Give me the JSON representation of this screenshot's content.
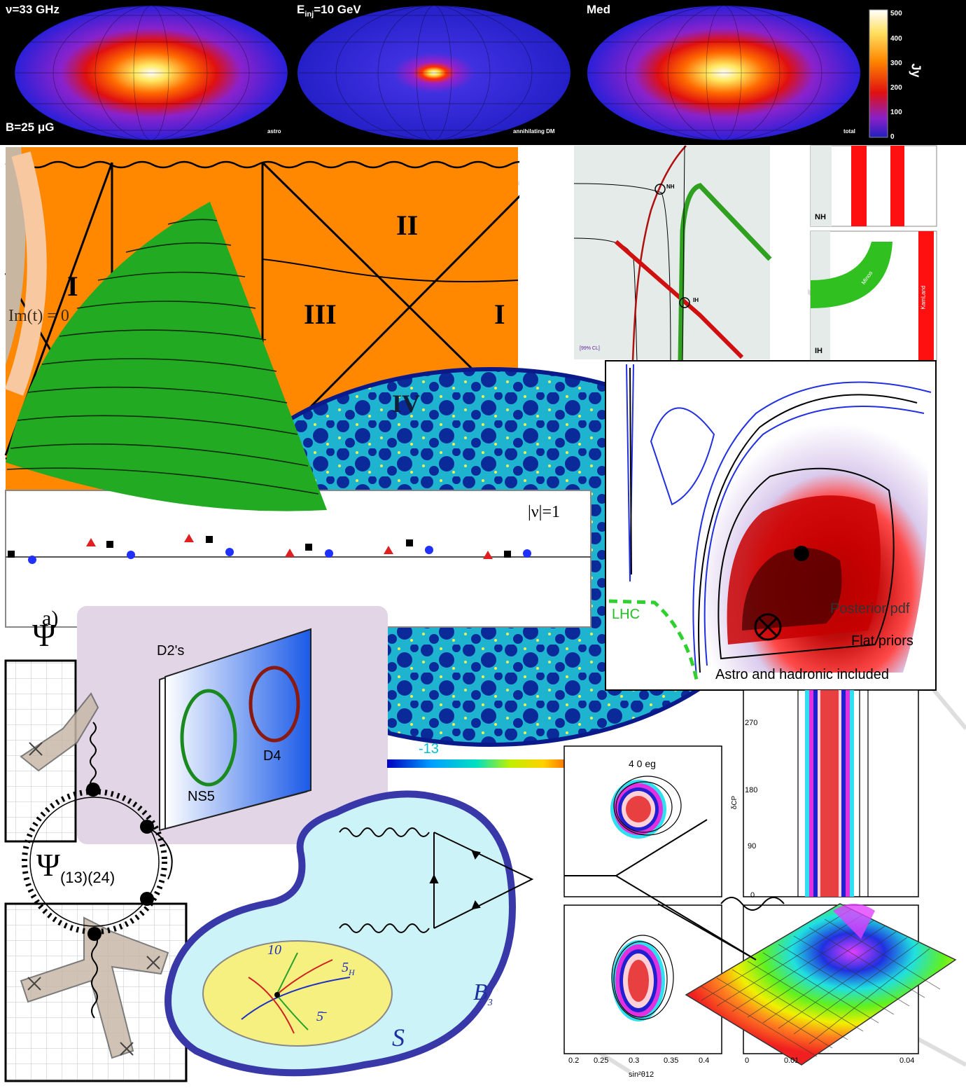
{
  "skymaps": {
    "frequency": "ν=33 GHz",
    "injection_energy_prefix": "E",
    "injection_energy_sub": "inj",
    "injection_energy_value": "=10 GeV",
    "diffusion": "Med",
    "bfield": "B=25 μG",
    "panel_labels": [
      "astro",
      "annihilating DM",
      "total"
    ],
    "colorbar_ticks": [
      "500",
      "400",
      "300",
      "200",
      "100",
      "0"
    ],
    "colorbar_unit": "Jy"
  },
  "penrose": {
    "regions": [
      "I",
      "II",
      "III",
      "I",
      "IV"
    ],
    "im_label": "Im(t) = 0"
  },
  "neutrino_plot": {
    "annotations": [
      "NH",
      "IH",
      "[99% CL]"
    ],
    "side_labels": [
      "NH",
      "IH",
      "Minos",
      "KamLand"
    ]
  },
  "instanton_plot": {
    "label": "|ν|=1"
  },
  "posterior": {
    "legend": [
      "Posterior pdf",
      "Flat priors",
      "Astro and hadronic included"
    ],
    "lhc_label": "LHC"
  },
  "dbrane": {
    "panel_label": "a)",
    "stack_label": "D2's",
    "ns5_label": "NS5",
    "d4_label": "D4"
  },
  "psi": {
    "psi_symbol": "Ψ",
    "psi_sub": "(13)(24)"
  },
  "fth": {
    "labels": [
      "10",
      "5",
      "H",
      "5̄"
    ],
    "surface_label": "S",
    "base_label": "B",
    "base_suffix": "3"
  },
  "colorbar_small": {
    "label": "-13"
  },
  "contour_panels": {
    "deltacp_label": "δCP",
    "ticks": [
      "270",
      "180",
      "90",
      "0"
    ],
    "xticks": [
      "0.2",
      "0.25",
      "0.3",
      "0.35",
      "0.4",
      "0",
      "0.01",
      "0.04"
    ],
    "xlabel": "sin²θ12",
    "frag": "4 0  eg"
  },
  "colors": {
    "orange": "#ff8800",
    "green": "#22aa22",
    "cmb_dark": "#0a1a8a",
    "lightblue": "#ccf4f8",
    "purple_bg": "#e2d6e6"
  }
}
